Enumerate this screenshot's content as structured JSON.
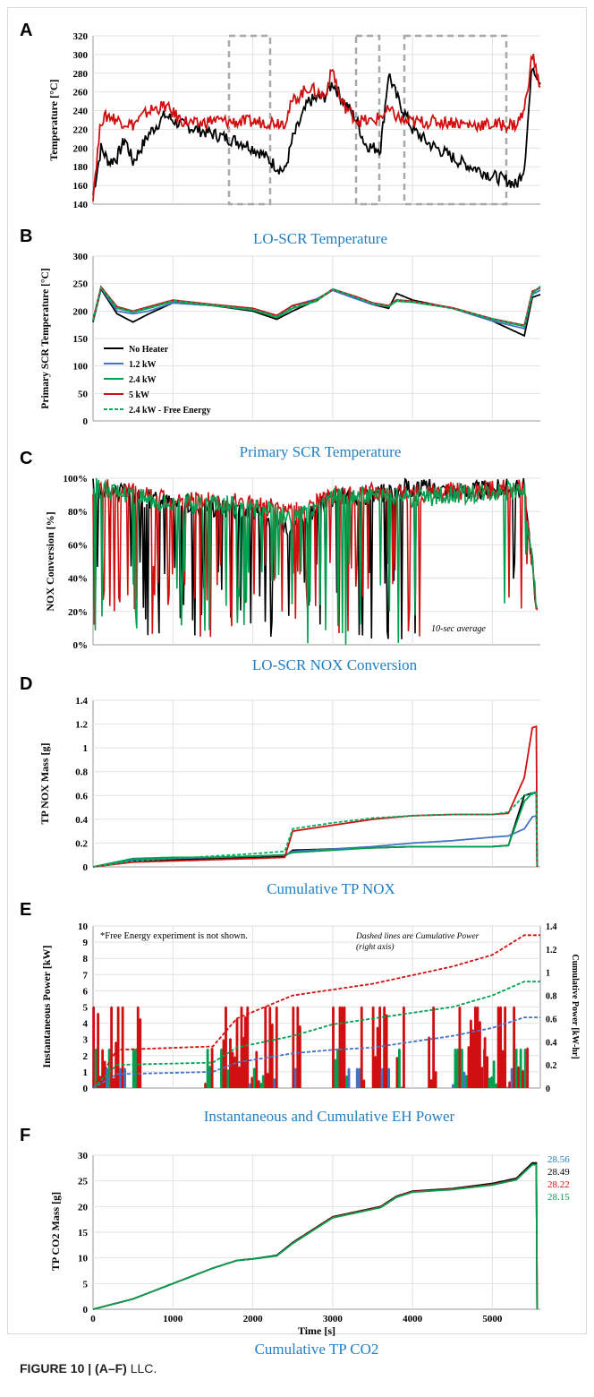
{
  "colors": {
    "no_heater": "#000000",
    "kw12": "#4472c4",
    "kw24": "#00a050",
    "kw5": "#d01010",
    "free_energy": "#00b060",
    "title": "#1f7fc4",
    "grid": "#d8d8d8",
    "box": "#a8a8a8"
  },
  "legend": [
    "No Heater",
    "1.2 kW",
    "2.4 kW",
    "5 kW",
    "2.4 kW - Free Energy"
  ],
  "caption": {
    "label": "FIGURE 10 | (A–F)",
    "text": " LLC."
  },
  "panel_A": {
    "letter": "A",
    "ylabel": "Temperature [°C]",
    "ticks": [
      "320",
      "300",
      "280",
      "260",
      "240",
      "220",
      "200",
      "180",
      "160",
      "140"
    ]
  },
  "panel_B": {
    "letter": "B",
    "title": "LO-SCR Temperature",
    "ylabel": "Primary SCR Temperature [°C]",
    "ticks": [
      "300",
      "250",
      "200",
      "150",
      "100",
      "50",
      "0"
    ]
  },
  "panel_C": {
    "letter": "C",
    "title": "Primary SCR Temperature",
    "ylabel": "NOX Conversion [%]",
    "ticks": [
      "100%",
      "80%",
      "60%",
      "40%",
      "20%",
      "0%"
    ],
    "note": "10-sec average"
  },
  "panel_D": {
    "letter": "D",
    "title": "LO-SCR NOX Conversion",
    "ylabel": "TP NOX Mass [g]",
    "ticks": [
      "1.4",
      "1.2",
      "1",
      "0.8",
      "0.6",
      "0.4",
      "0.2",
      "0"
    ]
  },
  "panel_E": {
    "letter": "E",
    "title": "Cumulative TP NOX",
    "ylabel": "Instantaneous Power [kW]",
    "ylabel2": "Cumulative Power [kW-hr]",
    "ticks": [
      "10",
      "9",
      "8",
      "7",
      "6",
      "5",
      "4",
      "3",
      "2",
      "1",
      "0"
    ],
    "ticks2": [
      "1.4",
      "1.2",
      "1",
      "0.8",
      "0.6",
      "0.4",
      "0.2",
      "0"
    ],
    "note1": "*Free Energy experiment is not shown.",
    "note2": "Dashed lines are Cumulative Power",
    "note3": "(right axis)"
  },
  "panel_F": {
    "letter": "F",
    "title": "Instantaneous and Cumulative EH Power",
    "ylabel": "TP CO2 Mass [g]",
    "ticks": [
      "30",
      "25",
      "20",
      "15",
      "10",
      "5",
      "0"
    ],
    "xticks": [
      "0",
      "1000",
      "2000",
      "3000",
      "4000",
      "5000"
    ],
    "xlabel": "Time [s]",
    "end_values": [
      "28.56",
      "28.49",
      "28.22",
      "28.15"
    ],
    "bottom_title": "Cumulative TP CO2"
  },
  "chart_data": [
    {
      "type": "line",
      "id": "A",
      "ylabel": "Temperature [°C]",
      "ylim": [
        140,
        320
      ],
      "xlim": [
        0,
        5600
      ],
      "series": [
        {
          "name": "No Heater",
          "x": [
            0,
            100,
            200,
            300,
            400,
            500,
            700,
            900,
            1100,
            1300,
            1500,
            1700,
            1900,
            2100,
            2300,
            2400,
            2500,
            2700,
            2900,
            3000,
            3100,
            3300,
            3400,
            3500,
            3600,
            3700,
            3800,
            4000,
            4200,
            4400,
            4600,
            4800,
            5000,
            5200,
            5300,
            5400,
            5500,
            5600
          ],
          "y": [
            150,
            200,
            185,
            190,
            210,
            185,
            215,
            235,
            225,
            220,
            215,
            210,
            205,
            195,
            180,
            175,
            210,
            250,
            255,
            270,
            255,
            230,
            205,
            200,
            200,
            280,
            255,
            220,
            205,
            195,
            185,
            178,
            170,
            165,
            160,
            180,
            290,
            270
          ]
        },
        {
          "name": "5 kW",
          "x": [
            0,
            100,
            200,
            300,
            500,
            700,
            900,
            1100,
            1300,
            1500,
            1700,
            1900,
            2100,
            2300,
            2400,
            2500,
            2700,
            2900,
            3000,
            3100,
            3300,
            3500,
            3700,
            3900,
            4100,
            4300,
            4500,
            4700,
            4900,
            5100,
            5300,
            5400,
            5500,
            5600
          ],
          "y": [
            150,
            230,
            235,
            230,
            225,
            240,
            245,
            230,
            225,
            230,
            228,
            228,
            228,
            228,
            228,
            250,
            265,
            255,
            285,
            250,
            230,
            228,
            240,
            228,
            228,
            228,
            228,
            225,
            225,
            225,
            225,
            240,
            300,
            265
          ]
        }
      ]
    },
    {
      "type": "line",
      "id": "B",
      "ylabel": "Primary SCR Temperature [°C]",
      "ylim": [
        0,
        300
      ],
      "xlim": [
        0,
        5600
      ],
      "series": [
        {
          "name": "No Heater",
          "x": [
            0,
            100,
            300,
            500,
            700,
            1000,
            1500,
            2000,
            2300,
            2500,
            2800,
            3000,
            3300,
            3500,
            3700,
            3800,
            4000,
            4500,
            5000,
            5400,
            5500,
            5600
          ],
          "y": [
            180,
            240,
            195,
            180,
            195,
            215,
            210,
            200,
            185,
            200,
            220,
            238,
            222,
            212,
            205,
            232,
            220,
            205,
            182,
            155,
            225,
            230
          ]
        },
        {
          "name": "1.2 kW",
          "x": [
            0,
            100,
            300,
            500,
            700,
            1000,
            1500,
            2000,
            2300,
            2500,
            2800,
            3000,
            3300,
            3500,
            3700,
            3800,
            4000,
            4500,
            5000,
            5400,
            5500,
            5600
          ],
          "y": [
            182,
            242,
            200,
            195,
            200,
            215,
            210,
            202,
            190,
            210,
            222,
            238,
            222,
            212,
            208,
            220,
            218,
            205,
            182,
            168,
            230,
            238
          ]
        },
        {
          "name": "2.4 kW",
          "x": [
            0,
            100,
            300,
            500,
            700,
            1000,
            1500,
            2000,
            2300,
            2500,
            2800,
            3000,
            3300,
            3500,
            3700,
            3800,
            4000,
            4500,
            5000,
            5400,
            5500,
            5600
          ],
          "y": [
            183,
            243,
            205,
            198,
            205,
            218,
            210,
            202,
            188,
            205,
            218,
            240,
            225,
            214,
            208,
            218,
            216,
            205,
            185,
            172,
            232,
            245
          ]
        },
        {
          "name": "5 kW",
          "x": [
            0,
            100,
            300,
            500,
            700,
            1000,
            1500,
            2000,
            2300,
            2500,
            2800,
            3000,
            3300,
            3500,
            3700,
            3800,
            4000,
            4500,
            5000,
            5400,
            5500,
            5600
          ],
          "y": [
            184,
            244,
            208,
            200,
            208,
            220,
            212,
            205,
            192,
            210,
            220,
            240,
            226,
            215,
            210,
            220,
            218,
            206,
            186,
            174,
            236,
            242
          ]
        },
        {
          "name": "2.4 kW - Free Energy",
          "x": [
            0,
            100,
            300,
            500,
            700,
            1000,
            1500,
            2000,
            2300,
            2500,
            2800,
            3000,
            3300,
            3500,
            3700,
            3800,
            4000,
            4500,
            5000,
            5400,
            5500,
            5600
          ],
          "y": [
            183,
            243,
            206,
            199,
            206,
            219,
            211,
            203,
            190,
            207,
            219,
            240,
            225,
            214,
            209,
            219,
            217,
            205,
            186,
            173,
            233,
            244
          ]
        }
      ]
    },
    {
      "type": "line",
      "id": "C",
      "ylabel": "NOX Conversion [%]",
      "ylim": [
        0,
        100
      ],
      "xlim": [
        0,
        5600
      ],
      "series": [
        {
          "name": "No Heater",
          "x": [
            0,
            1000,
            2000,
            2500,
            3000,
            3500,
            4000,
            4500,
            5000,
            5400,
            5600
          ],
          "y": [
            95,
            85,
            80,
            70,
            88,
            90,
            95,
            92,
            93,
            95,
            0
          ]
        },
        {
          "name": "5 kW",
          "x": [
            0,
            1000,
            2000,
            2500,
            3000,
            3500,
            4000,
            4500,
            5000,
            5400,
            5600
          ],
          "y": [
            95,
            88,
            85,
            80,
            90,
            92,
            90,
            92,
            93,
            95,
            0
          ]
        },
        {
          "name": "2.4 kW",
          "x": [
            0,
            1000,
            2000,
            2500,
            3000,
            3500,
            4000,
            4500,
            5000,
            5400,
            5600
          ],
          "y": [
            95,
            85,
            83,
            75,
            88,
            91,
            88,
            90,
            92,
            94,
            0
          ]
        }
      ]
    },
    {
      "type": "line",
      "id": "D",
      "ylabel": "TP NOX Mass [g]",
      "ylim": [
        0,
        1.4
      ],
      "xlim": [
        0,
        5600
      ],
      "series": [
        {
          "name": "No Heater",
          "x": [
            0,
            500,
            1000,
            1500,
            2000,
            2400,
            2500,
            3000,
            3500,
            4000,
            4500,
            5000,
            5200,
            5400,
            5500,
            5550,
            5560
          ],
          "y": [
            0,
            0.05,
            0.06,
            0.07,
            0.08,
            0.09,
            0.14,
            0.15,
            0.16,
            0.17,
            0.17,
            0.17,
            0.18,
            0.6,
            0.62,
            0.62,
            0
          ]
        },
        {
          "name": "1.2 kW",
          "x": [
            0,
            500,
            1000,
            1500,
            2000,
            2400,
            2500,
            3000,
            3500,
            4000,
            4500,
            5000,
            5200,
            5400,
            5500,
            5550,
            5560
          ],
          "y": [
            0,
            0.06,
            0.07,
            0.08,
            0.09,
            0.1,
            0.13,
            0.15,
            0.17,
            0.2,
            0.22,
            0.25,
            0.26,
            0.32,
            0.42,
            0.43,
            0
          ]
        },
        {
          "name": "2.4 kW",
          "x": [
            0,
            500,
            1000,
            1500,
            2000,
            2400,
            2500,
            3000,
            3500,
            4000,
            4500,
            5000,
            5200,
            5400,
            5500,
            5550,
            5560
          ],
          "y": [
            0,
            0.07,
            0.08,
            0.08,
            0.09,
            0.1,
            0.12,
            0.14,
            0.16,
            0.17,
            0.17,
            0.17,
            0.18,
            0.55,
            0.62,
            0.63,
            0
          ]
        },
        {
          "name": "5 kW",
          "x": [
            0,
            500,
            1000,
            1500,
            2000,
            2400,
            2500,
            3000,
            3500,
            4000,
            4500,
            5000,
            5200,
            5400,
            5500,
            5550,
            5560
          ],
          "y": [
            0,
            0.04,
            0.05,
            0.06,
            0.07,
            0.08,
            0.3,
            0.35,
            0.4,
            0.43,
            0.44,
            0.44,
            0.45,
            0.75,
            1.17,
            1.18,
            0
          ]
        },
        {
          "name": "2.4 kW - Free Energy",
          "x": [
            0,
            500,
            1000,
            1500,
            2000,
            2400,
            2500,
            3000,
            3500,
            4000,
            4500,
            5000,
            5200,
            5400,
            5500,
            5550,
            5560
          ],
          "y": [
            0,
            0.05,
            0.07,
            0.09,
            0.11,
            0.13,
            0.32,
            0.37,
            0.41,
            0.43,
            0.44,
            0.44,
            0.46,
            0.6,
            0.61,
            0.62,
            0
          ]
        }
      ]
    },
    {
      "type": "line",
      "id": "E",
      "ylabel": "Instantaneous Power [kW]",
      "ylim": [
        0,
        10
      ],
      "y2label": "Cumulative Power [kW-hr]",
      "y2lim": [
        0,
        1.4
      ],
      "xlim": [
        0,
        5600
      ],
      "series": [
        {
          "name": "5 kW cumulative",
          "x": [
            0,
            300,
            1500,
            1800,
            2500,
            3000,
            3500,
            4500,
            5000,
            5400,
            5600
          ],
          "y": [
            0,
            0.33,
            0.36,
            0.6,
            0.8,
            0.85,
            0.9,
            1.05,
            1.15,
            1.32,
            1.32
          ]
        },
        {
          "name": "2.4 kW cumulative",
          "x": [
            0,
            300,
            1500,
            1800,
            2500,
            3000,
            3500,
            4500,
            5000,
            5400,
            5600
          ],
          "y": [
            0,
            0.2,
            0.22,
            0.35,
            0.45,
            0.55,
            0.6,
            0.7,
            0.8,
            0.92,
            0.92
          ]
        },
        {
          "name": "1.2 kW cumulative",
          "x": [
            0,
            300,
            1500,
            1800,
            2500,
            3000,
            3500,
            4500,
            5000,
            5400,
            5600
          ],
          "y": [
            0,
            0.12,
            0.14,
            0.22,
            0.3,
            0.33,
            0.35,
            0.45,
            0.52,
            0.61,
            0.61
          ]
        }
      ]
    },
    {
      "type": "line",
      "id": "F",
      "ylabel": "TP CO2 Mass [g]",
      "xlabel": "Time [s]",
      "ylim": [
        0,
        30
      ],
      "xlim": [
        0,
        5600
      ],
      "series": [
        {
          "name": "No Heater",
          "x": [
            0,
            500,
            1000,
            1500,
            1800,
            2000,
            2300,
            2500,
            2800,
            3000,
            3300,
            3600,
            3800,
            4000,
            4500,
            5000,
            5300,
            5500,
            5550,
            5560
          ],
          "y": [
            0,
            2,
            5,
            8,
            9.5,
            9.8,
            10.5,
            13,
            16,
            18,
            19,
            20,
            22,
            23,
            23.5,
            24.5,
            25.5,
            28.5,
            28.5,
            0
          ]
        },
        {
          "name": "5 kW",
          "x": [
            0,
            500,
            1000,
            1500,
            1800,
            2000,
            2300,
            2500,
            2800,
            3000,
            3300,
            3600,
            3800,
            4000,
            4500,
            5000,
            5300,
            5500,
            5550,
            5560
          ],
          "y": [
            0,
            2,
            5,
            8,
            9.5,
            9.8,
            10.4,
            12.9,
            15.9,
            17.9,
            18.9,
            19.9,
            21.9,
            22.9,
            23.4,
            24.3,
            25.3,
            28.2,
            28.2,
            0
          ]
        },
        {
          "name": "2.4 kW",
          "x": [
            0,
            500,
            1000,
            1500,
            1800,
            2000,
            2300,
            2500,
            2800,
            3000,
            3300,
            3600,
            3800,
            4000,
            4500,
            5000,
            5300,
            5500,
            5550,
            5560
          ],
          "y": [
            0,
            2,
            5,
            8,
            9.5,
            9.8,
            10.4,
            12.8,
            15.8,
            17.8,
            18.8,
            19.8,
            21.8,
            22.8,
            23.3,
            24.2,
            25.2,
            28.15,
            28.15,
            0
          ]
        }
      ]
    }
  ]
}
